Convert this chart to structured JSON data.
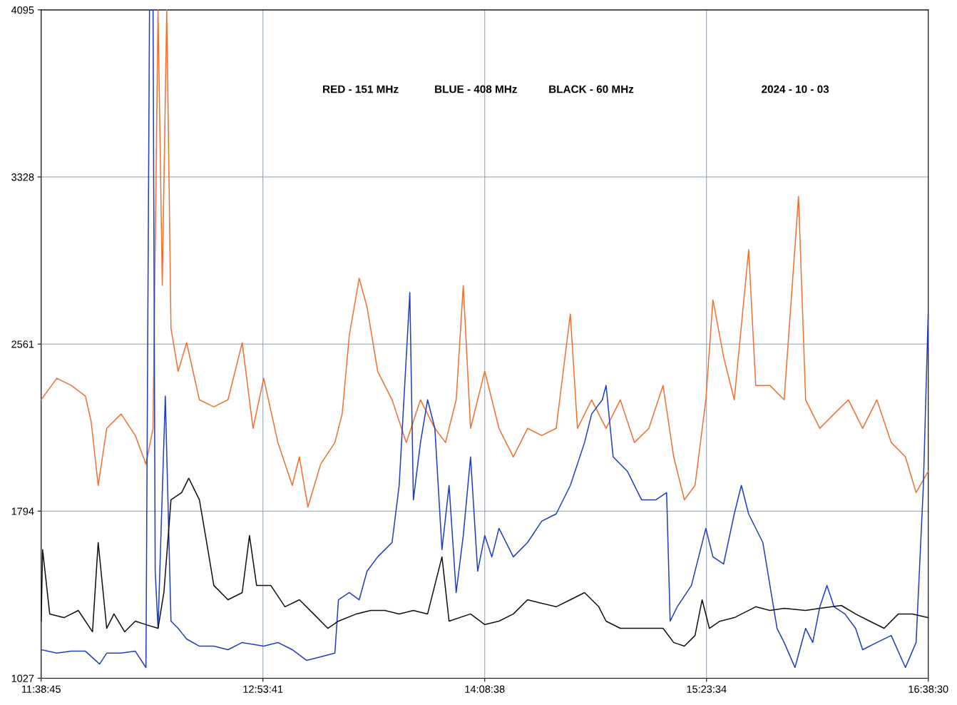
{
  "chart_data": {
    "type": "line",
    "annotations": [
      "RED - 151 MHz",
      "BLUE - 408 MHz",
      "BLACK - 60 MHz",
      "2024 - 10 - 03"
    ],
    "xlim": [
      11.6458,
      16.6417
    ],
    "xticks": [
      {
        "value": 11.6458,
        "label": "11:38:45"
      },
      {
        "value": 12.8947,
        "label": "12:53:41"
      },
      {
        "value": 14.1439,
        "label": "14:08:38"
      },
      {
        "value": 15.3928,
        "label": "15:23:34"
      },
      {
        "value": 16.6417,
        "label": "16:38:30"
      }
    ],
    "ylim": [
      1027,
      4095
    ],
    "yticks": [
      1027,
      1794,
      2561,
      3328,
      4095
    ],
    "grid": true,
    "line_style": "solid",
    "series": [
      {
        "color": "#f07030",
        "x": [
          11.646,
          11.734,
          11.815,
          11.895,
          11.927,
          11.967,
          12.015,
          12.096,
          12.176,
          12.236,
          12.276,
          12.304,
          12.328,
          12.353,
          12.377,
          12.417,
          12.465,
          12.537,
          12.618,
          12.698,
          12.778,
          12.839,
          12.899,
          12.979,
          13.06,
          13.1,
          13.148,
          13.22,
          13.3,
          13.341,
          13.381,
          13.437,
          13.481,
          13.541,
          13.622,
          13.702,
          13.782,
          13.863,
          13.923,
          13.983,
          14.023,
          14.064,
          14.144,
          14.224,
          14.305,
          14.385,
          14.465,
          14.546,
          14.626,
          14.666,
          14.746,
          14.827,
          14.907,
          14.987,
          15.068,
          15.148,
          15.208,
          15.268,
          15.328,
          15.389,
          15.429,
          15.489,
          15.549,
          15.63,
          15.67,
          15.75,
          15.83,
          15.911,
          15.951,
          16.031,
          16.111,
          16.192,
          16.272,
          16.352,
          16.433,
          16.513,
          16.573,
          16.641
        ],
        "values": [
          2305,
          2404,
          2371,
          2322,
          2207,
          1912,
          2174,
          2240,
          2141,
          2010,
          2174,
          4095,
          2830,
          4095,
          2633,
          2436,
          2567,
          2305,
          2273,
          2305,
          2567,
          2174,
          2404,
          2109,
          1912,
          2043,
          1813,
          2010,
          2109,
          2240,
          2600,
          2863,
          2731,
          2436,
          2305,
          2109,
          2305,
          2174,
          2109,
          2305,
          2830,
          2174,
          2436,
          2174,
          2043,
          2174,
          2141,
          2174,
          2699,
          2174,
          2305,
          2174,
          2305,
          2109,
          2174,
          2371,
          2043,
          1846,
          1912,
          2305,
          2764,
          2502,
          2305,
          2994,
          2371,
          2371,
          2305,
          3239,
          2305,
          2174,
          2240,
          2305,
          2174,
          2305,
          2109,
          2043,
          1879,
          1977
        ]
      },
      {
        "color": "#1f3fbf",
        "x": [
          11.646,
          11.734,
          11.815,
          11.895,
          11.975,
          12.015,
          12.096,
          12.176,
          12.236,
          12.256,
          12.276,
          12.288,
          12.304,
          12.345,
          12.377,
          12.417,
          12.465,
          12.537,
          12.618,
          12.698,
          12.778,
          12.899,
          12.979,
          13.06,
          13.14,
          13.22,
          13.3,
          13.32,
          13.381,
          13.437,
          13.481,
          13.541,
          13.622,
          13.662,
          13.722,
          13.742,
          13.782,
          13.822,
          13.863,
          13.903,
          13.943,
          13.983,
          14.023,
          14.064,
          14.104,
          14.144,
          14.184,
          14.224,
          14.305,
          14.385,
          14.465,
          14.546,
          14.626,
          14.706,
          14.746,
          14.806,
          14.827,
          14.867,
          14.947,
          15.027,
          15.108,
          15.168,
          15.188,
          15.228,
          15.308,
          15.389,
          15.429,
          15.489,
          15.549,
          15.589,
          15.63,
          15.71,
          15.75,
          15.79,
          15.83,
          15.891,
          15.951,
          15.991,
          16.031,
          16.071,
          16.111,
          16.172,
          16.232,
          16.272,
          16.352,
          16.433,
          16.513,
          16.573,
          16.614,
          16.641
        ],
        "values": [
          1158,
          1142,
          1151,
          1151,
          1092,
          1142,
          1142,
          1151,
          1076,
          4095,
          4095,
          1518,
          1256,
          2322,
          1289,
          1256,
          1207,
          1174,
          1174,
          1158,
          1191,
          1174,
          1191,
          1158,
          1109,
          1125,
          1142,
          1387,
          1420,
          1387,
          1518,
          1584,
          1650,
          1912,
          2797,
          1846,
          2109,
          2305,
          2174,
          1617,
          1912,
          1420,
          1682,
          2043,
          1518,
          1682,
          1584,
          1715,
          1584,
          1650,
          1748,
          1781,
          1912,
          2109,
          2240,
          2305,
          2371,
          2043,
          1977,
          1846,
          1846,
          1879,
          1289,
          1355,
          1453,
          1715,
          1584,
          1551,
          1781,
          1912,
          1781,
          1650,
          1453,
          1256,
          1191,
          1076,
          1256,
          1191,
          1355,
          1453,
          1355,
          1322,
          1256,
          1158,
          1191,
          1223,
          1076,
          1191,
          1912,
          2699
        ]
      },
      {
        "color": "#111111",
        "x": [
          11.646,
          11.654,
          11.694,
          11.774,
          11.855,
          11.935,
          11.967,
          12.015,
          12.056,
          12.116,
          12.176,
          12.236,
          12.304,
          12.337,
          12.377,
          12.437,
          12.477,
          12.537,
          12.578,
          12.618,
          12.698,
          12.778,
          12.819,
          12.859,
          12.939,
          13.019,
          13.1,
          13.18,
          13.26,
          13.32,
          13.421,
          13.501,
          13.582,
          13.662,
          13.742,
          13.822,
          13.903,
          13.943,
          14.064,
          14.144,
          14.224,
          14.305,
          14.385,
          14.465,
          14.546,
          14.626,
          14.706,
          14.786,
          14.827,
          14.907,
          15.027,
          15.148,
          15.208,
          15.268,
          15.328,
          15.368,
          15.409,
          15.469,
          15.549,
          15.67,
          15.75,
          15.83,
          15.951,
          16.031,
          16.152,
          16.232,
          16.312,
          16.393,
          16.473,
          16.553,
          16.641
        ],
        "values": [
          1289,
          1617,
          1322,
          1305,
          1338,
          1240,
          1650,
          1256,
          1322,
          1240,
          1289,
          1273,
          1256,
          1420,
          1846,
          1879,
          1945,
          1846,
          1650,
          1453,
          1387,
          1420,
          1682,
          1453,
          1453,
          1355,
          1387,
          1322,
          1256,
          1289,
          1322,
          1338,
          1338,
          1322,
          1338,
          1322,
          1584,
          1289,
          1322,
          1273,
          1289,
          1322,
          1387,
          1371,
          1355,
          1387,
          1420,
          1355,
          1289,
          1256,
          1256,
          1256,
          1191,
          1174,
          1223,
          1387,
          1256,
          1289,
          1305,
          1355,
          1338,
          1348,
          1338,
          1348,
          1361,
          1322,
          1289,
          1256,
          1322,
          1322,
          1305
        ]
      }
    ]
  }
}
